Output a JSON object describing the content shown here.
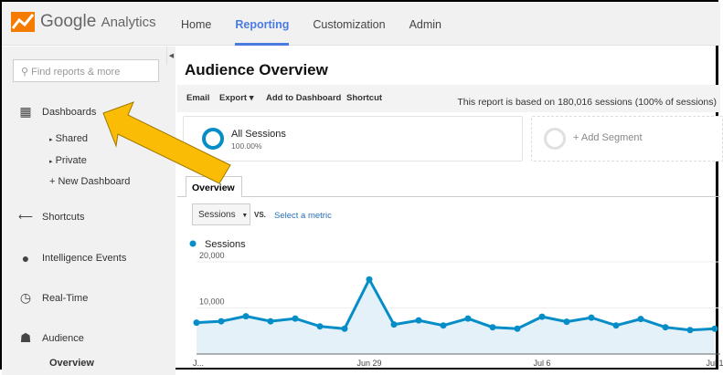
{
  "header": {
    "logo_google": "Google",
    "logo_analytics": "Analytics",
    "nav": [
      "Home",
      "Reporting",
      "Customization",
      "Admin"
    ],
    "active": "Reporting"
  },
  "sidebar": {
    "search_placeholder": "Find reports & more",
    "dashboards": "Dashboards",
    "shared": "Shared",
    "private": "Private",
    "new_dashboard": "+ New Dashboard",
    "shortcuts": "Shortcuts",
    "intelligence": "Intelligence Events",
    "realtime": "Real-Time",
    "audience": "Audience",
    "overview": "Overview"
  },
  "main": {
    "title": "Audience Overview",
    "toolbar": {
      "email": "Email",
      "export": "Export",
      "add_dashboard": "Add to Dashboard",
      "shortcut": "Shortcut",
      "info": "This report is based on 180,016 sessions (100% of sessions)"
    },
    "segment": {
      "name": "All Sessions",
      "pct": "100.00%",
      "add": "+ Add Segment"
    },
    "tab": "Overview",
    "metric_select": "Sessions",
    "vs": "VS.",
    "select_metric": "Select a metric"
  },
  "colors": {
    "accent": "#058dc7",
    "fill": "#e5f1f8",
    "nav_active": "#4a7ce0",
    "arrow": "#fbbc05"
  },
  "chart_data": {
    "type": "area",
    "legend": "Sessions",
    "ylim": [
      0,
      20000
    ],
    "yticks": [
      "20,000",
      "10,000"
    ],
    "ytick_values": [
      20000,
      10000
    ],
    "xlabels": [
      {
        "i": 0,
        "label": "J..."
      },
      {
        "i": 7,
        "label": "Jun 29"
      },
      {
        "i": 14,
        "label": "Jul 6"
      },
      {
        "i": 21,
        "label": "Jul 1"
      }
    ],
    "values": [
      6800,
      7100,
      8200,
      7100,
      7700,
      6000,
      5500,
      16200,
      6400,
      7300,
      6200,
      7700,
      5800,
      5500,
      8100,
      7000,
      7900,
      6200,
      7600,
      5800,
      5200,
      5500
    ]
  }
}
